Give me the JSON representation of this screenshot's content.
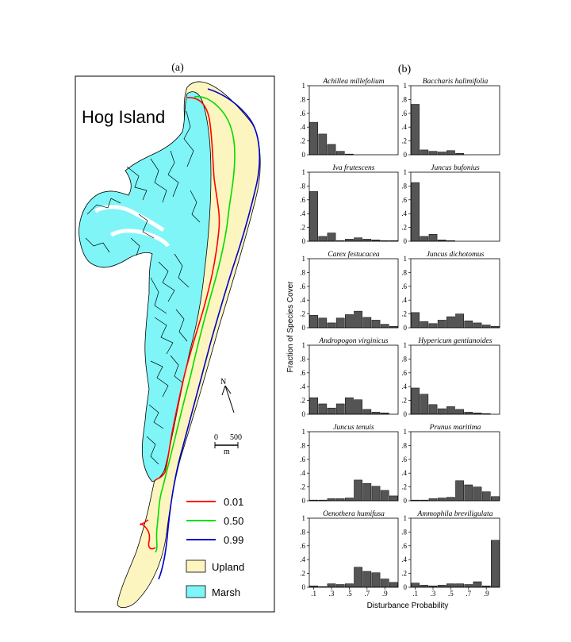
{
  "panel_a": {
    "label": "(a)",
    "map_title": "Hog  Island",
    "north_label": "N",
    "scale_labels": [
      "0",
      "500",
      "m"
    ],
    "legend": [
      {
        "label": "0.01",
        "color": "#ff0000",
        "kind": "line"
      },
      {
        "label": "0.50",
        "color": "#00dd00",
        "kind": "line"
      },
      {
        "label": "0.99",
        "color": "#0000cc",
        "kind": "line"
      },
      {
        "label": "Upland",
        "color": "#fdf5c0",
        "kind": "patch"
      },
      {
        "label": "Marsh",
        "color": "#7ff5f8",
        "kind": "patch"
      }
    ]
  },
  "panel_b": {
    "label": "(b)",
    "ylabel": "Fraction  of  Species  Cover",
    "xlabel": "Disturbance   Probability",
    "y_ticks": [
      "0",
      ".2",
      ".4",
      ".6",
      ".8",
      "1"
    ],
    "x_ticks": [
      ".1",
      ".3",
      ".5",
      ".7",
      ".9"
    ],
    "bar_color": "#555555"
  },
  "chart_data": {
    "type": "bar",
    "categories": [
      0.05,
      0.15,
      0.25,
      0.35,
      0.45,
      0.55,
      0.65,
      0.75,
      0.85,
      0.95
    ],
    "ylim": [
      0,
      1
    ],
    "xlabel": "Disturbance   Probability",
    "ylabel": "Fraction  of  Species  Cover",
    "panels": [
      {
        "name": "Achillea  millefolium",
        "values": [
          0.47,
          0.3,
          0.15,
          0.05,
          0.01,
          0,
          0,
          0,
          0,
          0
        ]
      },
      {
        "name": "Baccharis  halimifolia",
        "values": [
          0.73,
          0.07,
          0.05,
          0.04,
          0.06,
          0.02,
          0,
          0,
          0,
          0
        ]
      },
      {
        "name": "Iva  frutescens",
        "values": [
          0.72,
          0.07,
          0.12,
          0.01,
          0.03,
          0.05,
          0.03,
          0.02,
          0.01,
          0.01
        ]
      },
      {
        "name": "Juncus  bufonius",
        "values": [
          0.85,
          0.07,
          0.1,
          0.02,
          0.01,
          0,
          0,
          0,
          0,
          0
        ]
      },
      {
        "name": "Carex  festucacea",
        "values": [
          0.18,
          0.14,
          0.07,
          0.14,
          0.19,
          0.24,
          0.15,
          0.11,
          0.05,
          0.02
        ]
      },
      {
        "name": "Juncus  dichotomus",
        "values": [
          0.22,
          0.09,
          0.06,
          0.11,
          0.16,
          0.2,
          0.1,
          0.07,
          0.04,
          0.02
        ]
      },
      {
        "name": "Andropogon  virginicus",
        "values": [
          0.24,
          0.15,
          0.09,
          0.15,
          0.24,
          0.21,
          0.07,
          0.03,
          0.02,
          0
        ]
      },
      {
        "name": "Hypericum  gentianoides",
        "values": [
          0.38,
          0.29,
          0.14,
          0.08,
          0.11,
          0.07,
          0.03,
          0.02,
          0.01,
          0
        ]
      },
      {
        "name": "Juncus  tenuis",
        "values": [
          0.01,
          0.01,
          0.03,
          0.03,
          0.04,
          0.3,
          0.25,
          0.21,
          0.15,
          0.07
        ]
      },
      {
        "name": "Prunus  maritima",
        "values": [
          0.01,
          0.01,
          0.03,
          0.04,
          0.05,
          0.29,
          0.23,
          0.2,
          0.13,
          0.06
        ]
      },
      {
        "name": "Oenothera  humifusa",
        "values": [
          0.02,
          0.01,
          0.05,
          0.04,
          0.05,
          0.29,
          0.23,
          0.21,
          0.12,
          0.07
        ]
      },
      {
        "name": "Ammophila  breviligulata",
        "values": [
          0.06,
          0.03,
          0.02,
          0.03,
          0.05,
          0.05,
          0.04,
          0.08,
          0.02,
          0.68
        ]
      }
    ]
  }
}
